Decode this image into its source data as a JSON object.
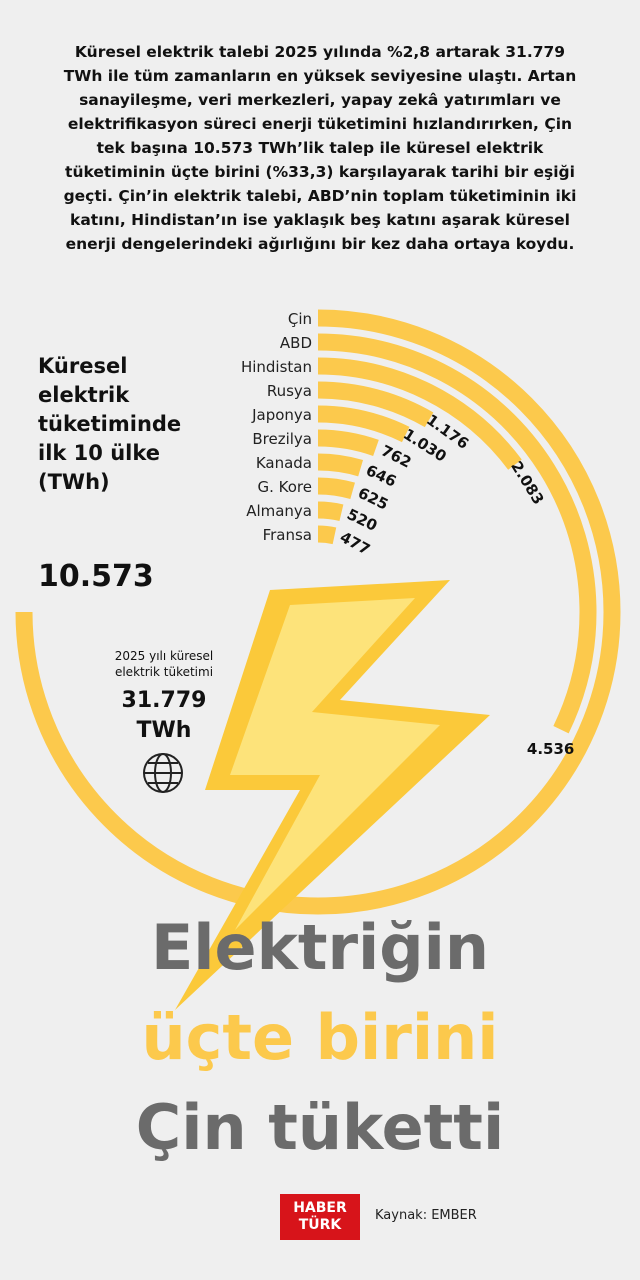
{
  "chart_data": {
    "type": "radial-bar",
    "subtitle": "Küresel elektrik talebi 2025 yılında %2,8 artarak 31.779 TWh ile tüm zamanların en yüksek seviyesine ulaştı. Artan sanayileşme, veri merkezleri, yapay zekâ yatırımları ve elektrifikasyon süreci enerji tüketimini hızlandırırken, Çin tek başına 10.573 TWh’lik talep ile küresel elektrik tüketiminin üçte birini (%33,3) karşılayarak tarihi bir eşiği geçti. Çin’in elektrik talebi, ABD’nin toplam tüketiminin iki katını, Hindistan’ın ise yaklaşık beş katını aşarak küresel enerji dengelerindeki ağırlığını bir kez daha ortaya koydu.",
    "title": "Küresel elektrik tüketiminde ilk 10 ülke (TWh)",
    "categories": [
      "Çin",
      "ABD",
      "Hindistan",
      "Rusya",
      "Japonya",
      "Brezilya",
      "Kanada",
      "G. Kore",
      "Almanya",
      "Fransa"
    ],
    "values": [
      10573,
      4536,
      2083,
      1176,
      1030,
      762,
      646,
      625,
      520,
      477
    ],
    "value_labels": [
      "10.573",
      "4.536",
      "2.083",
      "1.176",
      "1.030",
      "762",
      "646",
      "625",
      "520",
      "477"
    ],
    "color": "#fcc94c",
    "total_caption": "2025 yılı küresel elektrik tüketimi",
    "total": 31779,
    "total_label": "31.779",
    "total_unit": "TWh",
    "headline": [
      "Elektriğin",
      "üçte birini",
      "Çin tüketti"
    ],
    "brand": [
      "HABER",
      "TÜRK"
    ],
    "source": "Kaynak: EMBER"
  }
}
